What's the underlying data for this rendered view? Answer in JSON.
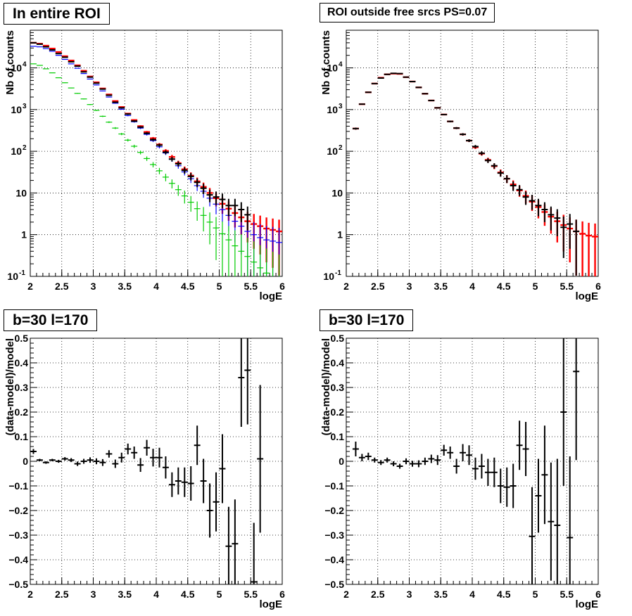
{
  "colors": {
    "data": "#000000",
    "model_total": "#ff0000",
    "model_blue": "#0000ff",
    "model_green": "#00cc00"
  },
  "chart_data": [
    {
      "type": "scatter",
      "title": "In entire ROI",
      "xlabel": "logE",
      "ylabel": "Nb of counts",
      "xlim": [
        2,
        6
      ],
      "ylim": [
        0.1,
        80000
      ],
      "yscale": "log",
      "grid": true,
      "x_ticks": [
        "2",
        "2.5",
        "3",
        "3.5",
        "4",
        "4.5",
        "5",
        "5.5",
        "6"
      ],
      "y_ticks": [
        "10^{-1}",
        "1",
        "10",
        "10^{2}",
        "10^{3}",
        "10^{4}"
      ],
      "bin_width": 0.1,
      "x": [
        2.05,
        2.15,
        2.25,
        2.35,
        2.45,
        2.55,
        2.65,
        2.75,
        2.85,
        2.95,
        3.05,
        3.15,
        3.25,
        3.35,
        3.45,
        3.55,
        3.65,
        3.75,
        3.85,
        3.95,
        4.05,
        4.15,
        4.25,
        4.35,
        4.45,
        4.55,
        4.65,
        4.75,
        4.85,
        4.95,
        5.05,
        5.15,
        5.25,
        5.35,
        5.45,
        5.55,
        5.65,
        5.75,
        5.85,
        5.95
      ],
      "series": [
        {
          "color": "red",
          "values": [
            40000,
            38000,
            34000,
            29000,
            24000,
            19000,
            15000,
            11500,
            8500,
            6200,
            4500,
            3200,
            2300,
            1600,
            1150,
            800,
            560,
            400,
            290,
            205,
            145,
            102,
            73,
            52,
            37,
            26,
            19,
            14,
            10,
            7.5,
            5.5,
            4.2,
            3.3,
            2.6,
            2.1,
            1.8,
            1.6,
            1.4,
            1.3,
            1.2
          ]
        },
        {
          "color": "blue",
          "values": [
            33000,
            32000,
            29000,
            25000,
            20000,
            16000,
            12500,
            9800,
            7300,
            5400,
            3900,
            2800,
            2000,
            1420,
            1020,
            720,
            510,
            360,
            255,
            180,
            128,
            91,
            64,
            45,
            32,
            22,
            15,
            11,
            7.5,
            5.4,
            4,
            2.9,
            2.1,
            1.6,
            1.2,
            1,
            0.85,
            0.75,
            0.7,
            0.65
          ]
        },
        {
          "color": "green",
          "values": [
            12500,
            11500,
            9500,
            7600,
            5800,
            4400,
            3300,
            2450,
            1800,
            1320,
            960,
            690,
            500,
            360,
            260,
            185,
            132,
            94,
            67,
            48,
            34,
            24,
            17,
            12,
            8.5,
            6,
            4.2,
            2.9,
            2,
            1.45,
            1.05,
            0.75,
            0.54,
            0.4,
            0.3,
            0.22,
            0.16,
            0.12,
            0.09,
            0.07
          ]
        },
        {
          "color": "black",
          "values": [
            40000,
            37000,
            32000,
            27000,
            22000,
            18000,
            14000,
            11000,
            8000,
            6000,
            4300,
            3100,
            2200,
            1500,
            1100,
            780,
            530,
            380,
            270,
            190,
            140,
            95,
            65,
            50,
            35,
            25,
            18,
            13,
            9,
            8,
            7,
            5,
            5,
            4,
            3
          ]
        }
      ]
    },
    {
      "type": "scatter",
      "title": "ROI outside free srcs PS=0.07",
      "xlabel": "logE",
      "ylabel": "Nb of counts",
      "xlim": [
        2,
        6
      ],
      "ylim": [
        0.1,
        80000
      ],
      "yscale": "log",
      "grid": true,
      "x_ticks": [
        "2",
        "2.5",
        "3",
        "3.5",
        "4",
        "4.5",
        "5",
        "5.5",
        "6"
      ],
      "y_ticks": [
        "10^{-1}",
        "1",
        "10",
        "10^{2}",
        "10^{3}",
        "10^{4}"
      ],
      "bin_width": 0.1,
      "x": [
        2.15,
        2.25,
        2.35,
        2.45,
        2.55,
        2.65,
        2.75,
        2.85,
        2.95,
        3.05,
        3.15,
        3.25,
        3.35,
        3.45,
        3.55,
        3.65,
        3.75,
        3.85,
        3.95,
        4.05,
        4.15,
        4.25,
        4.35,
        4.45,
        4.55,
        4.65,
        4.75,
        4.85,
        4.95,
        5.05,
        5.15,
        5.25,
        5.35,
        5.45,
        5.55,
        5.65,
        5.75,
        5.85,
        5.95
      ],
      "series": [
        {
          "color": "red",
          "values": [
            350,
            1350,
            2600,
            4200,
            5800,
            7000,
            7300,
            7200,
            6000,
            4700,
            3400,
            2400,
            1650,
            1100,
            760,
            520,
            360,
            255,
            180,
            125,
            88,
            62,
            44,
            31,
            22,
            16,
            11.5,
            8.5,
            6.2,
            4.6,
            3.5,
            2.7,
            2.1,
            1.7,
            1.4,
            1.2,
            1.05,
            0.95,
            0.9
          ]
        },
        {
          "color": "black",
          "values": [
            350,
            1350,
            2600,
            4200,
            5700,
            7000,
            7400,
            7300,
            6000,
            4700,
            3400,
            2400,
            1650,
            1100,
            760,
            520,
            360,
            255,
            180,
            130,
            90,
            60,
            45,
            30,
            22,
            15,
            12,
            8,
            6.5,
            5,
            4,
            3,
            2.5,
            1.5,
            1.8,
            1.2
          ]
        }
      ]
    },
    {
      "type": "scatter",
      "title": "b=30 l=170",
      "xlabel": "logE",
      "ylabel": "(data-model)/model",
      "xlim": [
        2,
        6
      ],
      "ylim": [
        -0.5,
        0.5
      ],
      "grid": true,
      "x_ticks": [
        "2",
        "2.5",
        "3",
        "3.5",
        "4",
        "4.5",
        "5",
        "5.5",
        "6"
      ],
      "y_ticks": [
        "-0.5",
        "-0.4",
        "-0.3",
        "-0.2",
        "-0.1",
        "0",
        "0.1",
        "0.2",
        "0.3",
        "0.4",
        "0.5"
      ],
      "bin_width": 0.1,
      "series": [
        {
          "color": "black",
          "x": [
            2.05,
            2.15,
            2.25,
            2.35,
            2.45,
            2.55,
            2.65,
            2.75,
            2.85,
            2.95,
            3.05,
            3.15,
            3.25,
            3.35,
            3.45,
            3.55,
            3.65,
            3.75,
            3.85,
            3.95,
            4.05,
            4.15,
            4.25,
            4.35,
            4.45,
            4.55,
            4.65,
            4.75,
            4.85,
            4.95,
            5.05,
            5.15,
            5.25,
            5.35,
            5.45,
            5.55,
            5.65
          ],
          "values": [
            0.04,
            0.005,
            -0.005,
            0.005,
            0,
            0.01,
            0.005,
            -0.01,
            0,
            0.005,
            0,
            -0.005,
            0.03,
            -0.01,
            0.015,
            0.05,
            0.035,
            -0.015,
            0.055,
            0.015,
            0.015,
            -0.025,
            -0.095,
            -0.08,
            -0.085,
            -0.09,
            0.065,
            -0.08,
            -0.2,
            -0.165,
            -0.03,
            -0.345,
            -0.335,
            0.34,
            0.37,
            -0.49,
            0.01
          ],
          "errors": [
            0.01,
            0.005,
            0.005,
            0.005,
            0.006,
            0.007,
            0.008,
            0.009,
            0.01,
            0.011,
            0.012,
            0.014,
            0.015,
            0.017,
            0.02,
            0.022,
            0.025,
            0.028,
            0.032,
            0.036,
            0.04,
            0.045,
            0.05,
            0.055,
            0.06,
            0.07,
            0.08,
            0.09,
            0.11,
            0.12,
            0.14,
            0.16,
            0.18,
            0.2,
            0.22,
            0.24,
            0.3
          ]
        }
      ]
    },
    {
      "type": "scatter",
      "title": "b=30 l=170",
      "xlabel": "logE",
      "ylabel": "(data-model)/model",
      "xlim": [
        2,
        6
      ],
      "ylim": [
        -0.5,
        0.5
      ],
      "grid": true,
      "x_ticks": [
        "2",
        "2.5",
        "3",
        "3.5",
        "4",
        "4.5",
        "5",
        "5.5",
        "6"
      ],
      "y_ticks": [
        "-0.5",
        "-0.4",
        "-0.3",
        "-0.2",
        "-0.1",
        "0",
        "0.1",
        "0.2",
        "0.3",
        "0.4",
        "0.5"
      ],
      "bin_width": 0.1,
      "series": [
        {
          "color": "black",
          "x": [
            2.15,
            2.25,
            2.35,
            2.45,
            2.55,
            2.65,
            2.75,
            2.85,
            2.95,
            3.05,
            3.15,
            3.25,
            3.35,
            3.45,
            3.55,
            3.65,
            3.75,
            3.85,
            3.95,
            4.05,
            4.15,
            4.25,
            4.35,
            4.45,
            4.55,
            4.65,
            4.75,
            4.85,
            4.95,
            5.05,
            5.15,
            5.25,
            5.35,
            5.45,
            5.55,
            5.65
          ],
          "values": [
            0.05,
            0.015,
            0.02,
            0.005,
            -0.005,
            0.005,
            -0.01,
            -0.02,
            0,
            -0.01,
            -0.01,
            0,
            0.01,
            0.005,
            0.045,
            0.035,
            -0.02,
            0.035,
            0.025,
            -0.03,
            -0.02,
            -0.045,
            -0.045,
            -0.1,
            -0.105,
            -0.1,
            0.065,
            0.05,
            -0.305,
            -0.14,
            -0.055,
            -0.245,
            -0.26,
            0.2,
            -0.31,
            0.365
          ],
          "errors": [
            0.03,
            0.015,
            0.015,
            0.01,
            0.01,
            0.01,
            0.01,
            0.01,
            0.012,
            0.012,
            0.014,
            0.015,
            0.017,
            0.02,
            0.022,
            0.025,
            0.03,
            0.035,
            0.04,
            0.045,
            0.05,
            0.055,
            0.06,
            0.07,
            0.08,
            0.09,
            0.1,
            0.11,
            0.2,
            0.15,
            0.2,
            0.24,
            0.27,
            0.3,
            0.33,
            0.36
          ]
        }
      ]
    }
  ]
}
